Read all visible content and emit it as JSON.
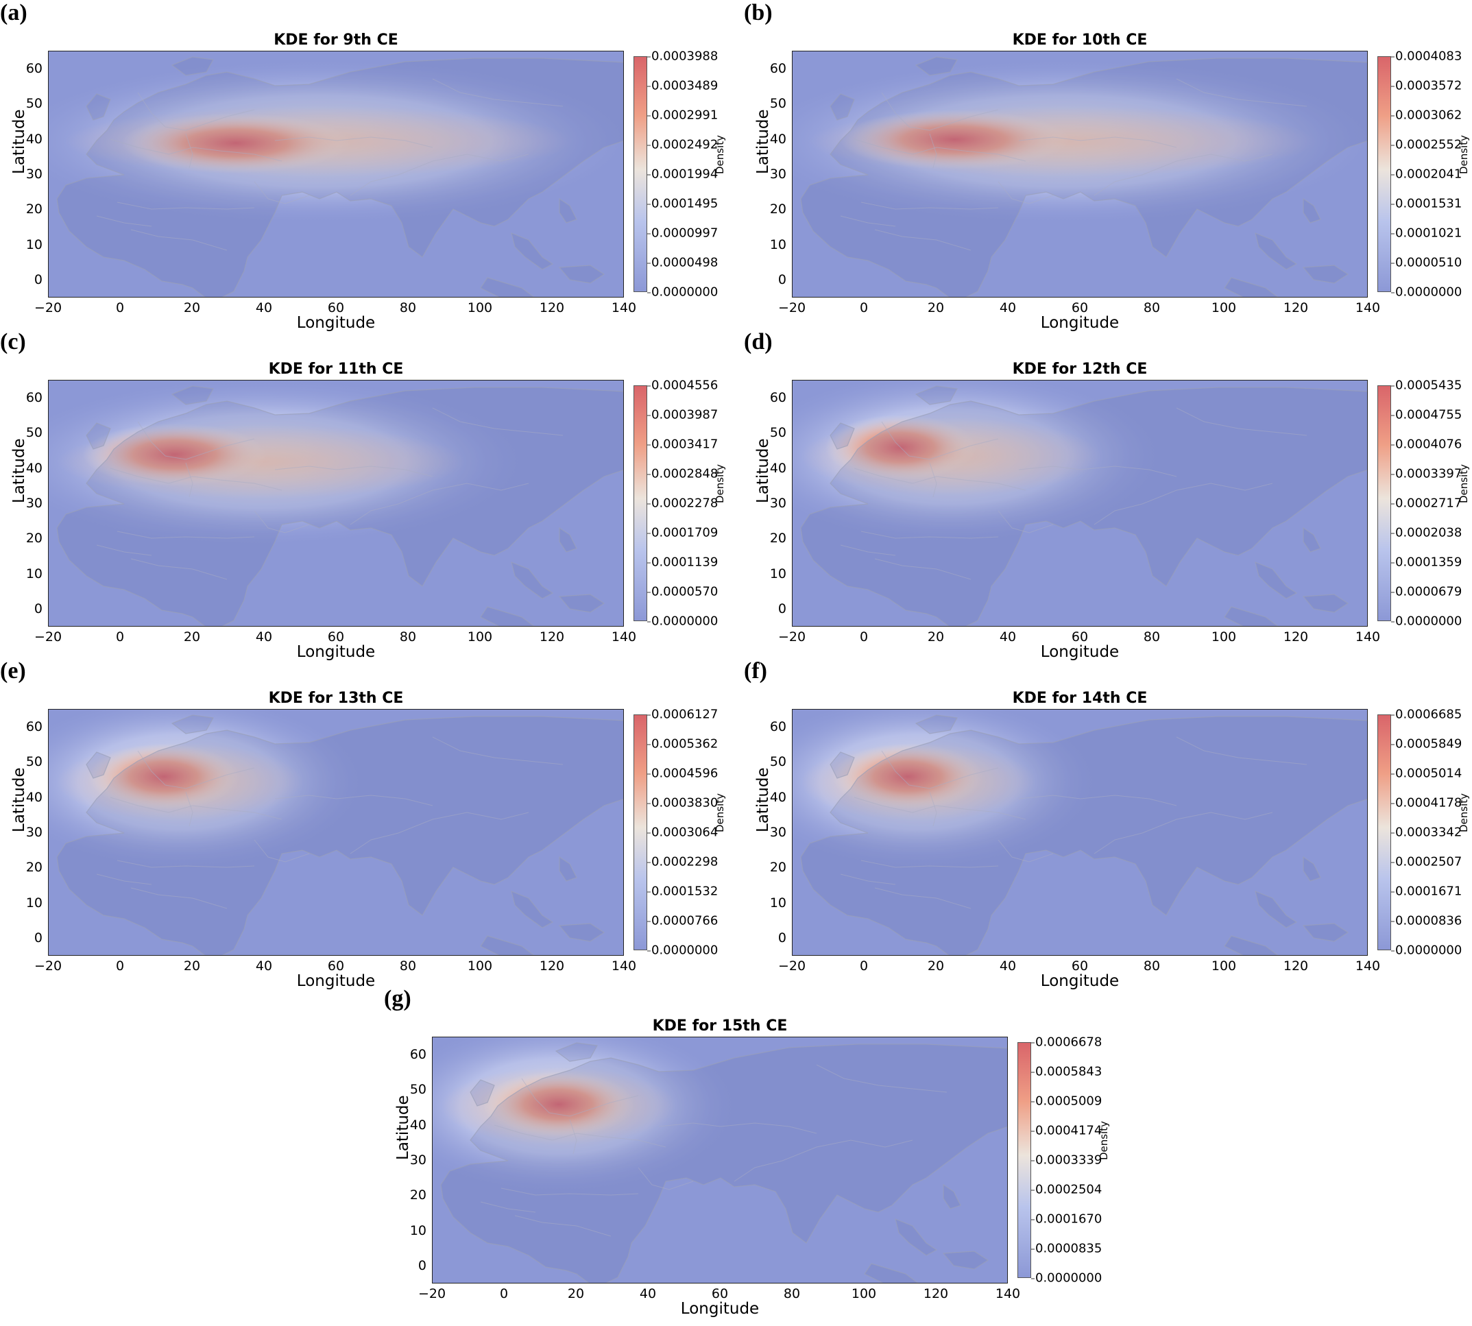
{
  "figure": {
    "panels": [
      {
        "letter": "(a)",
        "title": "KDE for 9th CE",
        "colorbar": [
          "0.0003988",
          "0.0003489",
          "0.0002991",
          "0.0002492",
          "0.0001994",
          "0.0001495",
          "0.0000997",
          "0.0000498",
          "0.0000000"
        ]
      },
      {
        "letter": "(b)",
        "title": "KDE for 10th CE",
        "colorbar": [
          "0.0004083",
          "0.0003572",
          "0.0003062",
          "0.0002552",
          "0.0002041",
          "0.0001531",
          "0.0001021",
          "0.0000510",
          "0.0000000"
        ]
      },
      {
        "letter": "(c)",
        "title": "KDE for 11th CE",
        "colorbar": [
          "0.0004556",
          "0.0003987",
          "0.0003417",
          "0.0002848",
          "0.0002278",
          "0.0001709",
          "0.0001139",
          "0.0000570",
          "0.0000000"
        ]
      },
      {
        "letter": "(d)",
        "title": "KDE for 12th CE",
        "colorbar": [
          "0.0005435",
          "0.0004755",
          "0.0004076",
          "0.0003397",
          "0.0002717",
          "0.0002038",
          "0.0001359",
          "0.0000679",
          "0.0000000"
        ]
      },
      {
        "letter": "(e)",
        "title": "KDE for 13th CE",
        "colorbar": [
          "0.0006127",
          "0.0005362",
          "0.0004596",
          "0.0003830",
          "0.0003064",
          "0.0002298",
          "0.0001532",
          "0.0000766",
          "0.0000000"
        ]
      },
      {
        "letter": "(f)",
        "title": "KDE for 14th CE",
        "colorbar": [
          "0.0006685",
          "0.0005849",
          "0.0005014",
          "0.0004178",
          "0.0003342",
          "0.0002507",
          "0.0001671",
          "0.0000836",
          "0.0000000"
        ]
      },
      {
        "letter": "(g)",
        "title": "KDE for 15th CE",
        "colorbar": [
          "0.0006678",
          "0.0005843",
          "0.0005009",
          "0.0004174",
          "0.0003339",
          "0.0002504",
          "0.0001670",
          "0.0000835",
          "0.0000000"
        ]
      }
    ],
    "xlabel": "Longitude",
    "ylabel": "Latitude",
    "colorbar_label": "Density",
    "xticks": [
      "−20",
      "0",
      "20",
      "40",
      "60",
      "80",
      "100",
      "120",
      "140"
    ],
    "yticks": [
      "60",
      "50",
      "40",
      "30",
      "20",
      "10",
      "0"
    ],
    "colors": {
      "high": "#d9656a",
      "mid": "#ece4dc",
      "low": "#8c98d6",
      "land": "#8590c2"
    }
  },
  "chart_data": [
    {
      "type": "heatmap",
      "title": "KDE for 9th CE",
      "xlabel": "Longitude",
      "ylabel": "Latitude",
      "xlim": [
        -20,
        140
      ],
      "ylim": [
        -5,
        65
      ],
      "colorbar_label": "Density",
      "color_range": [
        0.0,
        0.0003988
      ],
      "colormap": "coolwarm",
      "peak": {
        "lon": 32,
        "lat": 39
      },
      "hot_band": {
        "lon": [
          -10,
          120
        ],
        "lat": [
          33,
          46
        ]
      }
    },
    {
      "type": "heatmap",
      "title": "KDE for 10th CE",
      "xlabel": "Longitude",
      "ylabel": "Latitude",
      "xlim": [
        -20,
        140
      ],
      "ylim": [
        -5,
        65
      ],
      "colorbar_label": "Density",
      "color_range": [
        0.0,
        0.0004083
      ],
      "colormap": "coolwarm",
      "peak": {
        "lon": 25,
        "lat": 40
      },
      "hot_band": {
        "lon": [
          -10,
          120
        ],
        "lat": [
          33,
          46
        ]
      }
    },
    {
      "type": "heatmap",
      "title": "KDE for 11th CE",
      "xlabel": "Longitude",
      "ylabel": "Latitude",
      "xlim": [
        -20,
        140
      ],
      "ylim": [
        -5,
        65
      ],
      "colorbar_label": "Density",
      "color_range": [
        0.0,
        0.0004556
      ],
      "colormap": "coolwarm",
      "peak": {
        "lon": 15,
        "lat": 44
      },
      "hot_band": {
        "lon": [
          -12,
          90
        ],
        "lat": [
          35,
          49
        ]
      }
    },
    {
      "type": "heatmap",
      "title": "KDE for 12th CE",
      "xlabel": "Longitude",
      "ylabel": "Latitude",
      "xlim": [
        -20,
        140
      ],
      "ylim": [
        -5,
        65
      ],
      "colorbar_label": "Density",
      "color_range": [
        0.0,
        0.0005435
      ],
      "colormap": "coolwarm",
      "peak": {
        "lon": 10,
        "lat": 46
      },
      "hot_band": {
        "lon": [
          -12,
          60
        ],
        "lat": [
          36,
          51
        ]
      }
    },
    {
      "type": "heatmap",
      "title": "KDE for 13th CE",
      "xlabel": "Longitude",
      "ylabel": "Latitude",
      "xlim": [
        -20,
        140
      ],
      "ylim": [
        -5,
        65
      ],
      "colorbar_label": "Density",
      "color_range": [
        0.0,
        0.0006127
      ],
      "colormap": "coolwarm",
      "peak": {
        "lon": 12,
        "lat": 46
      },
      "hot_band": {
        "lon": [
          -12,
          45
        ],
        "lat": [
          37,
          52
        ]
      }
    },
    {
      "type": "heatmap",
      "title": "KDE for 14th CE",
      "xlabel": "Longitude",
      "ylabel": "Latitude",
      "xlim": [
        -20,
        140
      ],
      "ylim": [
        -5,
        65
      ],
      "colorbar_label": "Density",
      "color_range": [
        0.0,
        0.0006685
      ],
      "colormap": "coolwarm",
      "peak": {
        "lon": 12,
        "lat": 46
      },
      "hot_band": {
        "lon": [
          -12,
          42
        ],
        "lat": [
          37,
          52
        ]
      }
    },
    {
      "type": "heatmap",
      "title": "KDE for 15th CE",
      "xlabel": "Longitude",
      "ylabel": "Latitude",
      "xlim": [
        -20,
        140
      ],
      "ylim": [
        -5,
        65
      ],
      "colorbar_label": "Density",
      "color_range": [
        0.0,
        0.0006678
      ],
      "colormap": "coolwarm",
      "peak": {
        "lon": 15,
        "lat": 46
      },
      "hot_band": {
        "lon": [
          -12,
          42
        ],
        "lat": [
          38,
          53
        ]
      }
    }
  ]
}
